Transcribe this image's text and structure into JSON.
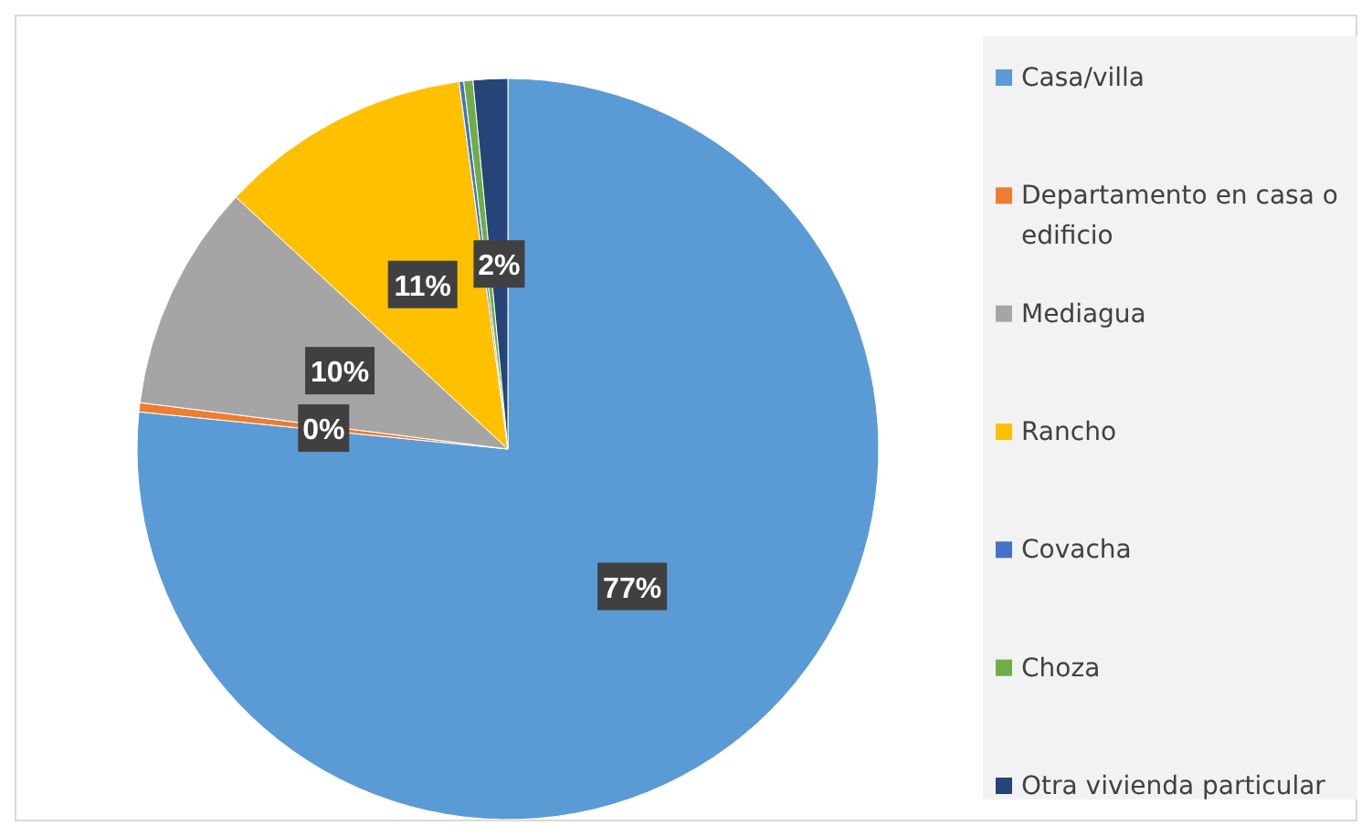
{
  "chart_data": {
    "type": "pie",
    "categories": [
      "Casa/villa",
      "Departamento en casa o edificio",
      "Mediagua",
      "Rancho",
      "Covacha",
      "Choza",
      "Otra vivienda particular"
    ],
    "values": [
      76.6,
      0.4,
      9.9,
      11.0,
      0.2,
      0.4,
      1.5
    ],
    "colors": [
      "#5b9bd5",
      "#ed7d31",
      "#a5a5a5",
      "#ffc000",
      "#4472c4",
      "#70ad47",
      "#264478"
    ],
    "value_labels": [
      "77%",
      "0%",
      "10%",
      "11%",
      null,
      null,
      "2%"
    ],
    "legend": "right"
  }
}
